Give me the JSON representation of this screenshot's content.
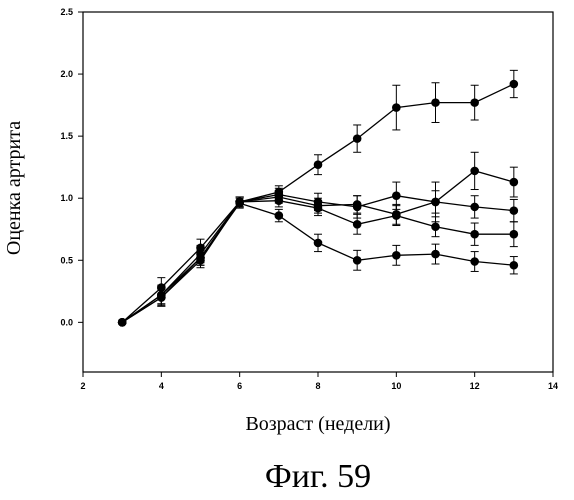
{
  "chart_data": {
    "type": "line",
    "xlabel": "Возраст (недели)",
    "ylabel": "Оценка артрита",
    "figure_label": "Фиг. 59",
    "xlim": [
      2,
      14
    ],
    "ylim": [
      -0.4,
      2.5
    ],
    "xticks": [
      2,
      4,
      6,
      8,
      10,
      12,
      14
    ],
    "yticks": [
      0.0,
      0.5,
      1.0,
      1.5,
      2.0,
      2.5
    ],
    "ytick_labels": [
      "0.0",
      "0.5",
      "1.0",
      "1.5",
      "2.0",
      "2.5"
    ],
    "marker": "circle",
    "series": [
      {
        "x": [
          3,
          4,
          5,
          6,
          7,
          8,
          9,
          10,
          11,
          12,
          13
        ],
        "y": [
          0.0,
          0.22,
          0.55,
          0.97,
          1.05,
          1.27,
          1.48,
          1.73,
          1.77,
          1.77,
          1.92
        ],
        "err": [
          0.02,
          0.08,
          0.07,
          0.04,
          0.05,
          0.08,
          0.11,
          0.18,
          0.16,
          0.14,
          0.11
        ]
      },
      {
        "x": [
          3,
          4,
          5,
          6,
          7,
          8,
          9,
          10,
          11,
          12,
          13
        ],
        "y": [
          0.0,
          0.28,
          0.6,
          0.97,
          1.03,
          0.97,
          0.93,
          1.02,
          0.97,
          1.22,
          1.13
        ],
        "err": [
          0.02,
          0.08,
          0.07,
          0.04,
          0.05,
          0.07,
          0.09,
          0.11,
          0.16,
          0.15,
          0.12
        ]
      },
      {
        "x": [
          3,
          4,
          5,
          6,
          7,
          8,
          9,
          10,
          11,
          12,
          13
        ],
        "y": [
          0.0,
          0.2,
          0.5,
          0.97,
          1.01,
          0.94,
          0.95,
          0.87,
          0.97,
          0.93,
          0.9
        ],
        "err": [
          0.02,
          0.07,
          0.06,
          0.04,
          0.05,
          0.06,
          0.07,
          0.08,
          0.09,
          0.09,
          0.09
        ]
      },
      {
        "x": [
          3,
          4,
          5,
          6,
          7,
          8,
          9,
          10,
          11,
          12,
          13
        ],
        "y": [
          0.0,
          0.22,
          0.52,
          0.97,
          0.98,
          0.92,
          0.79,
          0.86,
          0.77,
          0.71,
          0.71
        ],
        "err": [
          0.02,
          0.07,
          0.06,
          0.04,
          0.05,
          0.06,
          0.08,
          0.08,
          0.08,
          0.09,
          0.1
        ]
      },
      {
        "x": [
          3,
          4,
          5,
          6,
          7,
          8,
          9,
          10,
          11,
          12,
          13
        ],
        "y": [
          0.0,
          0.2,
          0.52,
          0.96,
          0.86,
          0.64,
          0.5,
          0.54,
          0.55,
          0.49,
          0.46
        ],
        "err": [
          0.02,
          0.07,
          0.06,
          0.04,
          0.05,
          0.07,
          0.08,
          0.08,
          0.08,
          0.08,
          0.07
        ]
      }
    ]
  }
}
